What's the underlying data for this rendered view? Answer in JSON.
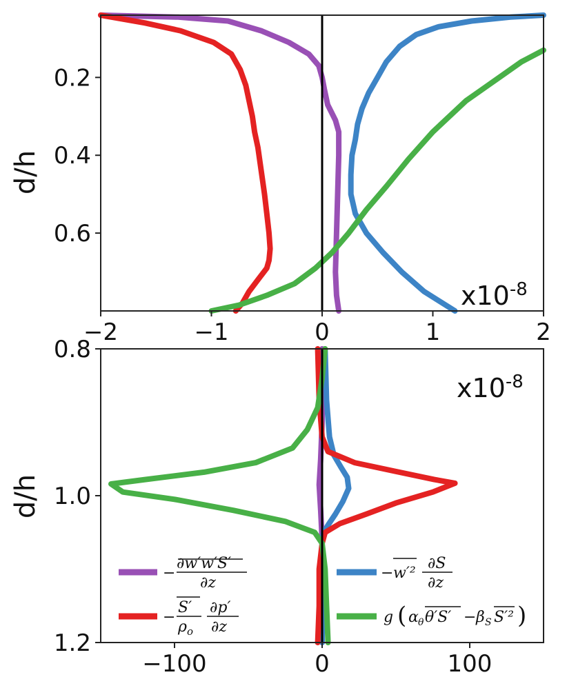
{
  "chart_data": [
    {
      "type": "line",
      "panel": "top",
      "xlim": [
        -2,
        2
      ],
      "ylim": [
        0.8,
        0.04
      ],
      "y_inverted": true,
      "ylabel": "d/h",
      "scale_label": "x10",
      "scale_exponent": "-8",
      "x_ticks": [
        -2,
        -1,
        0,
        1,
        2
      ],
      "x_tick_labels": [
        "−2",
        "−1",
        "0",
        "1",
        "2"
      ],
      "y_ticks": [
        0.2,
        0.4,
        0.6
      ],
      "y_tick_labels": [
        "0.2",
        "0.4",
        "0.6"
      ],
      "zero_line": true,
      "series": [
        {
          "key": "transport",
          "color": "#9950b5",
          "points": [
            [
              -2.0,
              0.04
            ],
            [
              -1.3,
              0.045
            ],
            [
              -0.85,
              0.055
            ],
            [
              -0.55,
              0.08
            ],
            [
              -0.3,
              0.11
            ],
            [
              -0.12,
              0.14
            ],
            [
              -0.03,
              0.17
            ],
            [
              0.0,
              0.2
            ],
            [
              0.02,
              0.23
            ],
            [
              0.05,
              0.27
            ],
            [
              0.12,
              0.31
            ],
            [
              0.15,
              0.34
            ],
            [
              0.15,
              0.4
            ],
            [
              0.14,
              0.5
            ],
            [
              0.13,
              0.6
            ],
            [
              0.12,
              0.7
            ],
            [
              0.13,
              0.76
            ],
            [
              0.15,
              0.8
            ]
          ]
        },
        {
          "key": "gradient",
          "color": "#3d84c6",
          "points": [
            [
              2.0,
              0.04
            ],
            [
              1.7,
              0.045
            ],
            [
              1.35,
              0.055
            ],
            [
              1.05,
              0.07
            ],
            [
              0.85,
              0.09
            ],
            [
              0.7,
              0.12
            ],
            [
              0.58,
              0.16
            ],
            [
              0.5,
              0.2
            ],
            [
              0.42,
              0.24
            ],
            [
              0.36,
              0.28
            ],
            [
              0.32,
              0.32
            ],
            [
              0.3,
              0.36
            ],
            [
              0.27,
              0.4
            ],
            [
              0.26,
              0.45
            ],
            [
              0.26,
              0.5
            ],
            [
              0.3,
              0.55
            ],
            [
              0.4,
              0.6
            ],
            [
              0.55,
              0.65
            ],
            [
              0.72,
              0.7
            ],
            [
              0.92,
              0.75
            ],
            [
              1.2,
              0.8
            ]
          ]
        },
        {
          "key": "pressure",
          "color": "#e42222",
          "points": [
            [
              -2.0,
              0.04
            ],
            [
              -1.6,
              0.06
            ],
            [
              -1.28,
              0.08
            ],
            [
              -0.98,
              0.11
            ],
            [
              -0.82,
              0.14
            ],
            [
              -0.74,
              0.18
            ],
            [
              -0.69,
              0.22
            ],
            [
              -0.66,
              0.26
            ],
            [
              -0.63,
              0.3
            ],
            [
              -0.61,
              0.34
            ],
            [
              -0.58,
              0.38
            ],
            [
              -0.56,
              0.42
            ],
            [
              -0.54,
              0.46
            ],
            [
              -0.52,
              0.5
            ],
            [
              -0.5,
              0.55
            ],
            [
              -0.48,
              0.6
            ],
            [
              -0.47,
              0.64
            ],
            [
              -0.48,
              0.67
            ],
            [
              -0.5,
              0.69
            ],
            [
              -0.58,
              0.72
            ],
            [
              -0.66,
              0.75
            ],
            [
              -0.72,
              0.78
            ],
            [
              -0.78,
              0.8
            ]
          ]
        },
        {
          "key": "buoyancy",
          "color": "#48b047",
          "points": [
            [
              2.0,
              0.13
            ],
            [
              1.8,
              0.16
            ],
            [
              1.6,
              0.2
            ],
            [
              1.3,
              0.26
            ],
            [
              1.0,
              0.34
            ],
            [
              0.78,
              0.41
            ],
            [
              0.58,
              0.48
            ],
            [
              0.4,
              0.54
            ],
            [
              0.24,
              0.6
            ],
            [
              0.09,
              0.65
            ],
            [
              -0.06,
              0.69
            ],
            [
              -0.25,
              0.73
            ],
            [
              -0.5,
              0.76
            ],
            [
              -0.75,
              0.785
            ],
            [
              -1.0,
              0.8
            ]
          ]
        }
      ]
    },
    {
      "type": "line",
      "panel": "bottom",
      "xlim": [
        -150,
        150
      ],
      "ylim": [
        1.2,
        0.8
      ],
      "y_inverted": true,
      "ylabel": "d/h",
      "scale_label": "x10",
      "scale_exponent": "-8",
      "x_ticks": [
        -100,
        0,
        100
      ],
      "x_tick_labels": [
        "−100",
        "0",
        "100"
      ],
      "y_ticks": [
        0.8,
        1.0,
        1.2
      ],
      "y_tick_labels": [
        "0.8",
        "1.0",
        "1.2"
      ],
      "zero_line": true,
      "series": [
        {
          "key": "transport",
          "color": "#9950b5",
          "points": [
            [
              0,
              0.8
            ],
            [
              0,
              0.9
            ],
            [
              -1,
              0.95
            ],
            [
              -2,
              0.985
            ],
            [
              -1,
              1.02
            ],
            [
              0,
              1.06
            ],
            [
              0,
              1.2
            ]
          ]
        },
        {
          "key": "gradient",
          "color": "#3d84c6",
          "points": [
            [
              2,
              0.8
            ],
            [
              3,
              0.87
            ],
            [
              5,
              0.92
            ],
            [
              8,
              0.945
            ],
            [
              13,
              0.962
            ],
            [
              17,
              0.975
            ],
            [
              18,
              0.99
            ],
            [
              14,
              1.008
            ],
            [
              9,
              1.025
            ],
            [
              4,
              1.04
            ],
            [
              1,
              1.05
            ],
            [
              0,
              1.06
            ],
            [
              0,
              1.2
            ]
          ]
        },
        {
          "key": "pressure",
          "color": "#e42222",
          "points": [
            [
              -3,
              0.8
            ],
            [
              -2,
              0.87
            ],
            [
              0,
              0.92
            ],
            [
              4,
              0.94
            ],
            [
              22,
              0.955
            ],
            [
              50,
              0.967
            ],
            [
              76,
              0.978
            ],
            [
              90,
              0.983
            ],
            [
              75,
              0.995
            ],
            [
              50,
              1.01
            ],
            [
              30,
              1.025
            ],
            [
              12,
              1.038
            ],
            [
              2,
              1.05
            ],
            [
              0,
              1.065
            ],
            [
              -2,
              1.1
            ],
            [
              -2,
              1.15
            ],
            [
              -3,
              1.2
            ]
          ]
        },
        {
          "key": "buoyancy",
          "color": "#48b047",
          "points": [
            [
              2,
              0.8
            ],
            [
              0,
              0.84
            ],
            [
              -3,
              0.88
            ],
            [
              -10,
              0.91
            ],
            [
              -20,
              0.935
            ],
            [
              -45,
              0.955
            ],
            [
              -80,
              0.968
            ],
            [
              -120,
              0.978
            ],
            [
              -143,
              0.984
            ],
            [
              -135,
              0.995
            ],
            [
              -100,
              1.005
            ],
            [
              -60,
              1.02
            ],
            [
              -25,
              1.035
            ],
            [
              -5,
              1.05
            ],
            [
              0,
              1.065
            ],
            [
              2,
              1.1
            ],
            [
              3,
              1.15
            ],
            [
              4,
              1.2
            ]
          ]
        }
      ]
    }
  ],
  "legend": {
    "placement": "lower",
    "entries": [
      {
        "key": "transport",
        "color": "#9950b5"
      },
      {
        "key": "gradient",
        "color": "#3d84c6"
      },
      {
        "key": "pressure",
        "color": "#e42222"
      },
      {
        "key": "buoyancy",
        "color": "#48b047"
      }
    ]
  }
}
